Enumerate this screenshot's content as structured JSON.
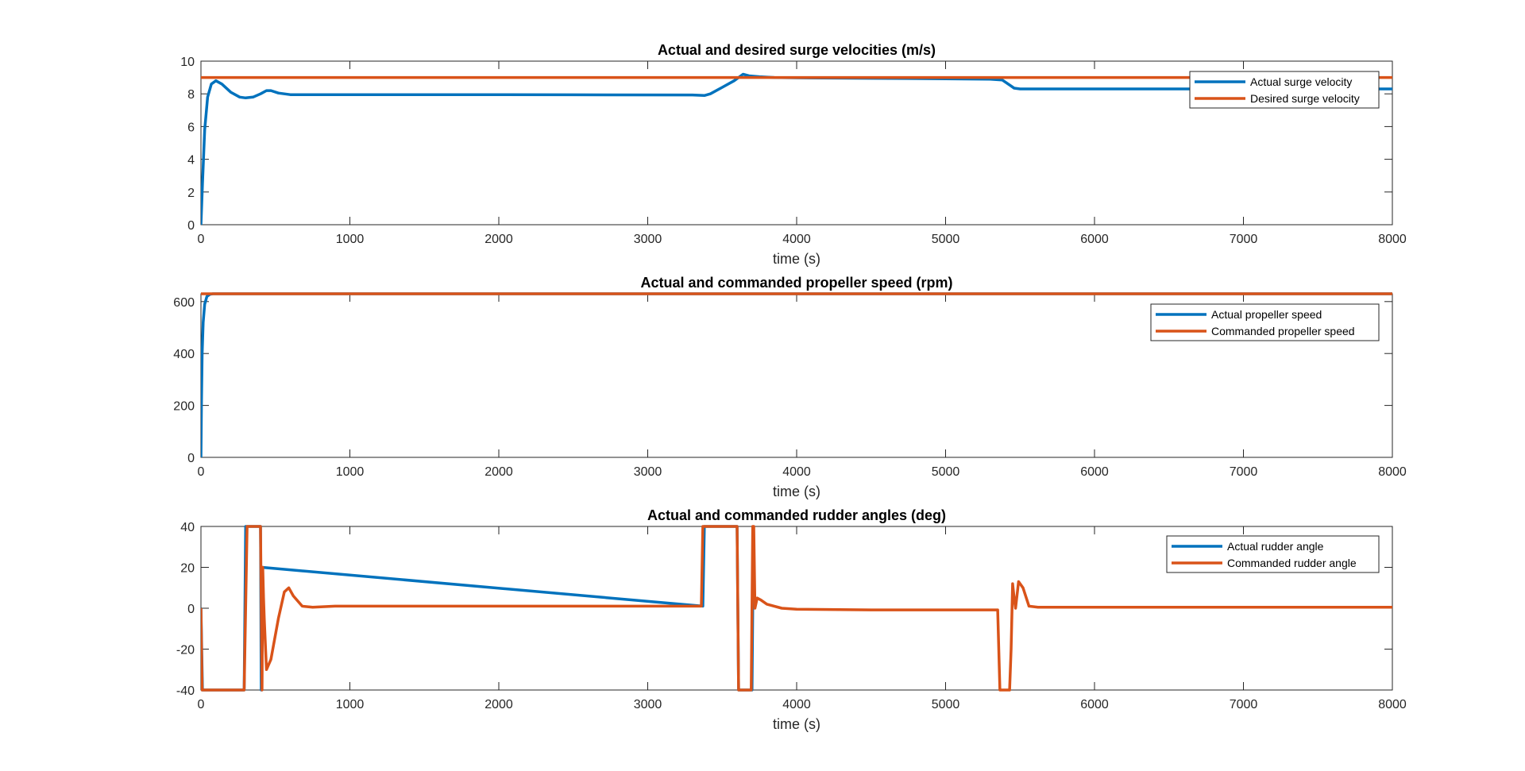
{
  "colors": {
    "actual": "#0072BD",
    "desired": "#D95319",
    "axis": "#262626"
  },
  "chart_data": [
    {
      "type": "line",
      "title": "Actual and desired surge velocities (m/s)",
      "xlabel": "time (s)",
      "ylabel": "",
      "xlim": [
        0,
        8000
      ],
      "ylim": [
        0,
        10
      ],
      "xticks": [
        0,
        1000,
        2000,
        3000,
        4000,
        5000,
        6000,
        7000,
        8000
      ],
      "yticks": [
        0,
        2,
        4,
        6,
        8,
        10
      ],
      "legend": {
        "position": "top-right"
      },
      "series": [
        {
          "name": "Actual surge velocity",
          "color": "#0072BD",
          "x": [
            0,
            10,
            25,
            45,
            70,
            100,
            140,
            200,
            260,
            300,
            350,
            400,
            440,
            470,
            520,
            600,
            800,
            1500,
            2500,
            3300,
            3380,
            3420,
            3500,
            3580,
            3640,
            3680,
            3750,
            3850,
            4000,
            4500,
            5000,
            5300,
            5380,
            5420,
            5460,
            5500,
            5600,
            6000,
            7000,
            8000
          ],
          "y": [
            0,
            2.5,
            5.8,
            7.8,
            8.6,
            8.8,
            8.6,
            8.1,
            7.8,
            7.75,
            7.8,
            8.0,
            8.2,
            8.2,
            8.05,
            7.95,
            7.95,
            7.95,
            7.94,
            7.93,
            7.9,
            8.0,
            8.4,
            8.8,
            9.2,
            9.1,
            9.05,
            9.0,
            8.98,
            8.95,
            8.92,
            8.9,
            8.85,
            8.6,
            8.35,
            8.3,
            8.3,
            8.3,
            8.3,
            8.3
          ]
        },
        {
          "name": "Desired surge velocity",
          "color": "#D95319",
          "x": [
            0,
            8000
          ],
          "y": [
            9,
            9
          ]
        }
      ]
    },
    {
      "type": "line",
      "title": "Actual and commanded propeller speed (rpm)",
      "xlabel": "time (s)",
      "ylabel": "",
      "xlim": [
        0,
        8000
      ],
      "ylim": [
        0,
        630
      ],
      "xticks": [
        0,
        1000,
        2000,
        3000,
        4000,
        5000,
        6000,
        7000,
        8000
      ],
      "yticks": [
        0,
        200,
        400,
        600
      ],
      "legend": {
        "position": "top-right"
      },
      "series": [
        {
          "name": "Actual propeller speed",
          "color": "#0072BD",
          "x": [
            0,
            3,
            8,
            15,
            25,
            40,
            60,
            80,
            8000
          ],
          "y": [
            0,
            200,
            400,
            520,
            590,
            620,
            628,
            630,
            630
          ]
        },
        {
          "name": "Commanded propeller speed",
          "color": "#D95319",
          "x": [
            0,
            8000
          ],
          "y": [
            630,
            630
          ]
        }
      ]
    },
    {
      "type": "line",
      "title": "Actual and commanded rudder angles (deg)",
      "xlabel": "time (s)",
      "ylabel": "",
      "xlim": [
        0,
        8000
      ],
      "ylim": [
        -40,
        40
      ],
      "xticks": [
        0,
        1000,
        2000,
        3000,
        4000,
        5000,
        6000,
        7000,
        8000
      ],
      "yticks": [
        -40,
        -20,
        0,
        20,
        40
      ],
      "legend": {
        "position": "top-right"
      },
      "series": [
        {
          "name": "Actual rudder angle",
          "color": "#0072BD",
          "x": [
            0,
            10,
            290,
            300,
            330,
            400,
            405,
            410,
            3370,
            3380,
            3600,
            3610,
            3700,
            3710
          ],
          "y": [
            0,
            -40,
            -40,
            40,
            40,
            40,
            -40,
            20,
            1,
            40,
            40,
            -40,
            -40,
            40
          ]
        },
        {
          "name": "Commanded rudder angle",
          "color": "#D95319",
          "x": [
            0,
            8,
            15,
            290,
            310,
            400,
            410,
            415,
            420,
            425,
            440,
            470,
            520,
            560,
            590,
            620,
            680,
            750,
            900,
            1500,
            2500,
            3360,
            3370,
            3380,
            3590,
            3600,
            3610,
            3680,
            3695,
            3705,
            3712,
            3720,
            3735,
            3760,
            3800,
            3900,
            4000,
            4500,
            5000,
            5350,
            5365,
            5375,
            5420,
            5430,
            5440,
            5450,
            5460,
            5470,
            5490,
            5520,
            5560,
            5620,
            5700,
            6000,
            7000,
            8000
          ],
          "y": [
            0,
            -40,
            -40,
            -40,
            40,
            40,
            -40,
            20,
            5,
            -5,
            -30,
            -25,
            -5,
            8,
            10,
            6,
            1,
            0.5,
            1,
            1,
            1,
            1,
            40,
            40,
            40,
            40,
            -40,
            -40,
            -40,
            40,
            40,
            0,
            5,
            4,
            2,
            0,
            -0.5,
            -0.8,
            -0.8,
            -0.8,
            -40,
            -40,
            -40,
            -40,
            -20,
            12,
            5,
            0,
            13,
            10,
            1,
            0.5,
            0.5,
            0.5,
            0.5,
            0.5
          ]
        }
      ]
    }
  ]
}
